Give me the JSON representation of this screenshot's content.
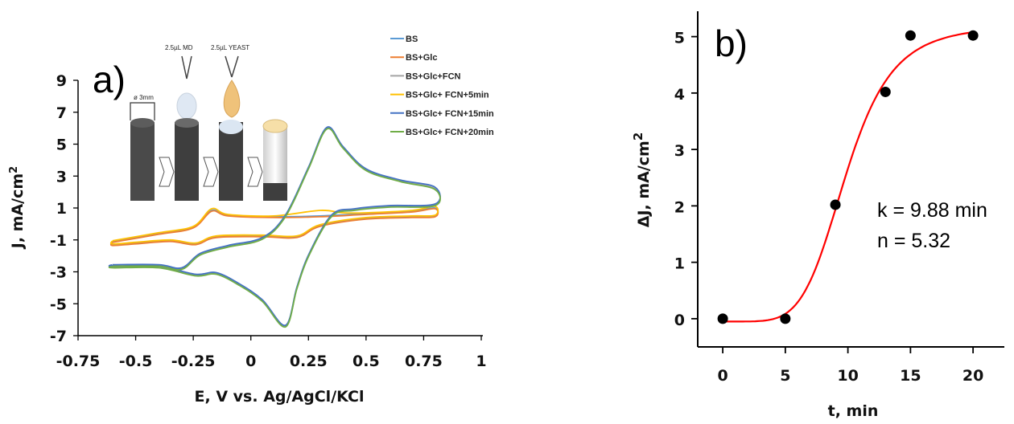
{
  "chart_data": [
    {
      "type": "line",
      "panel_label": "a)",
      "xlabel": "E, V vs. Ag/AgCl/KCl",
      "ylabel": "J, mA/cm",
      "ylabel_sup": "2",
      "xlim": [
        -0.75,
        1
      ],
      "ylim": [
        -7,
        9
      ],
      "xticks": [
        "-0.75",
        "-0.5",
        "-0.25",
        "0",
        "0.25",
        "0.5",
        "0.75",
        "1"
      ],
      "xtick_values": [
        -0.75,
        -0.5,
        -0.25,
        0,
        0.25,
        0.5,
        0.75,
        1
      ],
      "yticks": [
        "9",
        "7",
        "5",
        "3",
        "1",
        "-1",
        "-3",
        "-5",
        "-7"
      ],
      "ytick_values": [
        9,
        7,
        5,
        3,
        1,
        -1,
        -3,
        -5,
        -7
      ],
      "inset_labels": {
        "diameter": "ø 3mm",
        "drop1": "2.5µL MD",
        "drop2": "2.5µL YEAST"
      },
      "series": [
        {
          "name": "BS",
          "color": "#5b9bd5",
          "group": "small",
          "upper": [
            [
              -0.6,
              -1.1
            ],
            [
              -0.4,
              -0.6
            ],
            [
              -0.25,
              -0.2
            ],
            [
              -0.17,
              0.85
            ],
            [
              -0.1,
              0.55
            ],
            [
              0.1,
              0.45
            ],
            [
              0.3,
              0.5
            ],
            [
              0.5,
              0.65
            ],
            [
              0.7,
              0.8
            ],
            [
              0.8,
              1.0
            ]
          ],
          "lower": [
            [
              0.8,
              0.5
            ],
            [
              0.7,
              0.45
            ],
            [
              0.5,
              0.35
            ],
            [
              0.3,
              -0.1
            ],
            [
              0.2,
              -0.8
            ],
            [
              0.05,
              -0.75
            ],
            [
              -0.15,
              -0.8
            ],
            [
              -0.24,
              -1.25
            ],
            [
              -0.35,
              -1.05
            ],
            [
              -0.5,
              -1.2
            ],
            [
              -0.6,
              -1.3
            ]
          ]
        },
        {
          "name": "BS+Glc",
          "color": "#ed7d31",
          "group": "small",
          "upper": [
            [
              -0.6,
              -1.15
            ],
            [
              -0.4,
              -0.65
            ],
            [
              -0.25,
              -0.25
            ],
            [
              -0.17,
              0.8
            ],
            [
              -0.1,
              0.5
            ],
            [
              0.1,
              0.4
            ],
            [
              0.3,
              0.45
            ],
            [
              0.5,
              0.6
            ],
            [
              0.7,
              0.75
            ],
            [
              0.8,
              0.95
            ]
          ],
          "lower": [
            [
              0.8,
              0.45
            ],
            [
              0.7,
              0.4
            ],
            [
              0.5,
              0.3
            ],
            [
              0.3,
              -0.15
            ],
            [
              0.2,
              -0.85
            ],
            [
              0.05,
              -0.8
            ],
            [
              -0.15,
              -0.85
            ],
            [
              -0.24,
              -1.3
            ],
            [
              -0.35,
              -1.1
            ],
            [
              -0.5,
              -1.25
            ],
            [
              -0.6,
              -1.35
            ]
          ]
        },
        {
          "name": "BS+Glc+FCN",
          "color": "#a5a5a5",
          "group": "large",
          "upper": [
            [
              -0.6,
              -2.6
            ],
            [
              -0.4,
              -2.6
            ],
            [
              -0.3,
              -2.8
            ],
            [
              -0.22,
              -1.9
            ],
            [
              -0.1,
              -1.4
            ],
            [
              0.05,
              -0.9
            ],
            [
              0.15,
              0.5
            ],
            [
              0.25,
              3.5
            ],
            [
              0.33,
              6.0
            ],
            [
              0.4,
              4.8
            ],
            [
              0.5,
              3.4
            ],
            [
              0.65,
              2.7
            ],
            [
              0.8,
              2.2
            ]
          ],
          "lower": [
            [
              0.8,
              1.2
            ],
            [
              0.6,
              1.1
            ],
            [
              0.45,
              0.9
            ],
            [
              0.35,
              0.5
            ],
            [
              0.25,
              -2.0
            ],
            [
              0.2,
              -4.0
            ],
            [
              0.15,
              -6.4
            ],
            [
              0.05,
              -4.8
            ],
            [
              -0.05,
              -3.8
            ],
            [
              -0.15,
              -3.1
            ],
            [
              -0.24,
              -3.2
            ],
            [
              -0.4,
              -2.7
            ],
            [
              -0.6,
              -2.7
            ]
          ]
        },
        {
          "name": "BS+Glc+ FCN+5min",
          "color": "#ffc000",
          "group": "small",
          "upper": [
            [
              -0.6,
              -1.05
            ],
            [
              -0.4,
              -0.55
            ],
            [
              -0.25,
              -0.15
            ],
            [
              -0.17,
              0.95
            ],
            [
              -0.1,
              0.6
            ],
            [
              0.1,
              0.5
            ],
            [
              0.3,
              0.85
            ],
            [
              0.4,
              0.7
            ],
            [
              0.5,
              0.7
            ],
            [
              0.7,
              0.85
            ],
            [
              0.8,
              1.1
            ]
          ],
          "lower": [
            [
              0.8,
              0.55
            ],
            [
              0.7,
              0.5
            ],
            [
              0.5,
              0.4
            ],
            [
              0.3,
              -0.05
            ],
            [
              0.2,
              -0.75
            ],
            [
              0.05,
              -0.7
            ],
            [
              -0.15,
              -0.75
            ],
            [
              -0.24,
              -1.2
            ],
            [
              -0.35,
              -1.0
            ],
            [
              -0.5,
              -1.15
            ],
            [
              -0.6,
              -1.25
            ]
          ]
        },
        {
          "name": "BS+Glc+ FCN+15min",
          "color": "#4472c4",
          "group": "large",
          "upper": [
            [
              -0.6,
              -2.55
            ],
            [
              -0.4,
              -2.55
            ],
            [
              -0.3,
              -2.75
            ],
            [
              -0.22,
              -1.85
            ],
            [
              -0.1,
              -1.35
            ],
            [
              0.05,
              -0.85
            ],
            [
              0.15,
              0.55
            ],
            [
              0.25,
              3.55
            ],
            [
              0.33,
              6.05
            ],
            [
              0.4,
              4.85
            ],
            [
              0.5,
              3.45
            ],
            [
              0.65,
              2.75
            ],
            [
              0.8,
              2.3
            ]
          ],
          "lower": [
            [
              0.8,
              1.25
            ],
            [
              0.6,
              1.15
            ],
            [
              0.45,
              0.95
            ],
            [
              0.35,
              0.55
            ],
            [
              0.25,
              -1.95
            ],
            [
              0.2,
              -3.95
            ],
            [
              0.15,
              -6.35
            ],
            [
              0.05,
              -4.75
            ],
            [
              -0.05,
              -3.75
            ],
            [
              -0.15,
              -3.05
            ],
            [
              -0.24,
              -3.15
            ],
            [
              -0.4,
              -2.65
            ],
            [
              -0.6,
              -2.65
            ]
          ]
        },
        {
          "name": "BS+Glc+ FCN+20min",
          "color": "#70ad47",
          "group": "large",
          "upper": [
            [
              -0.6,
              -2.65
            ],
            [
              -0.4,
              -2.65
            ],
            [
              -0.3,
              -2.85
            ],
            [
              -0.22,
              -1.95
            ],
            [
              -0.1,
              -1.45
            ],
            [
              0.05,
              -0.95
            ],
            [
              0.15,
              0.45
            ],
            [
              0.25,
              3.45
            ],
            [
              0.33,
              5.95
            ],
            [
              0.4,
              4.75
            ],
            [
              0.5,
              3.35
            ],
            [
              0.65,
              2.65
            ],
            [
              0.8,
              2.15
            ]
          ],
          "lower": [
            [
              0.8,
              1.15
            ],
            [
              0.6,
              1.05
            ],
            [
              0.45,
              0.85
            ],
            [
              0.35,
              0.45
            ],
            [
              0.25,
              -2.05
            ],
            [
              0.2,
              -4.05
            ],
            [
              0.15,
              -6.45
            ],
            [
              0.05,
              -4.85
            ],
            [
              -0.05,
              -3.85
            ],
            [
              -0.15,
              -3.15
            ],
            [
              -0.24,
              -3.25
            ],
            [
              -0.4,
              -2.75
            ],
            [
              -0.6,
              -2.75
            ]
          ]
        }
      ]
    },
    {
      "type": "scatter",
      "panel_label": "b)",
      "xlabel": "t, min",
      "ylabel": "ΔJ, mA/cm",
      "ylabel_sup": "2",
      "xlim": [
        -2,
        22.5
      ],
      "ylim": [
        -0.5,
        5.45
      ],
      "xticks": [
        "0",
        "5",
        "10",
        "15",
        "20"
      ],
      "xtick_values": [
        0,
        5,
        10,
        15,
        20
      ],
      "yticks": [
        "0",
        "1",
        "2",
        "3",
        "4",
        "5"
      ],
      "ytick_values": [
        0,
        1,
        2,
        3,
        4,
        5
      ],
      "points": {
        "x": [
          0,
          5,
          9,
          13,
          15,
          20
        ],
        "y": [
          0,
          0,
          2.02,
          4.02,
          5.02,
          5.02
        ],
        "color": "#000000"
      },
      "fit": {
        "type": "sigmoid",
        "color": "#ff0000",
        "k": 9.88,
        "n": 5.32,
        "y0": -0.05,
        "ymax": 5.2
      },
      "annotations": [
        "k = 9.88 min",
        "n = 5.32"
      ]
    }
  ]
}
